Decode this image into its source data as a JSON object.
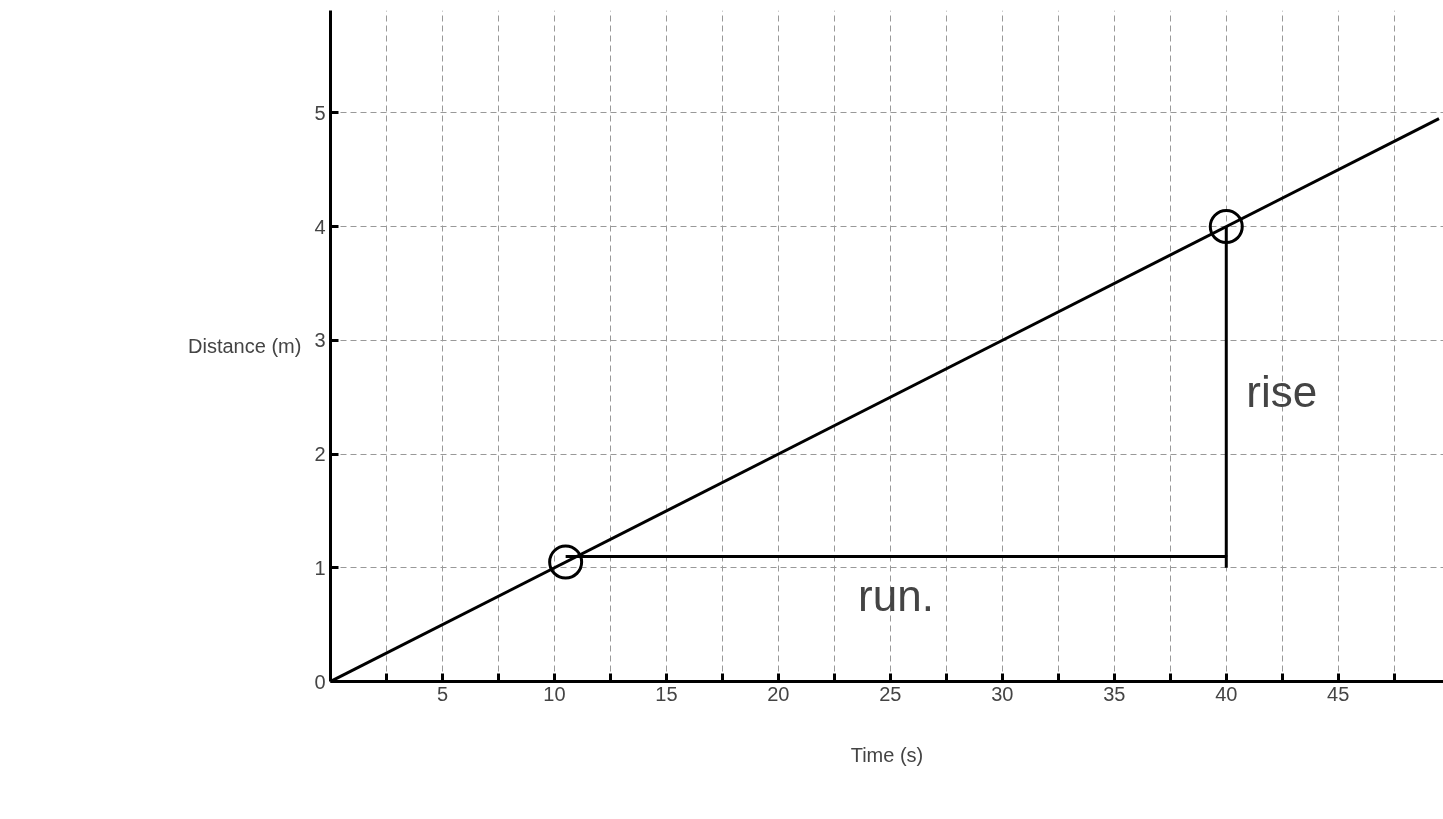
{
  "chart_data": {
    "type": "line",
    "xlabel": "Time (s)",
    "ylabel": "Distance (m)",
    "xlim": [
      0,
      49.7
    ],
    "ylim": [
      0,
      5.9
    ],
    "xticks": [
      {
        "value": 2.5,
        "label": null
      },
      5,
      {
        "value": 7.5,
        "label": null
      },
      10,
      {
        "value": 12.5,
        "label": null
      },
      15,
      {
        "value": 17.5,
        "label": null
      },
      20,
      {
        "value": 22.5,
        "label": null
      },
      25,
      {
        "value": 27.5,
        "label": null
      },
      30,
      {
        "value": 32.5,
        "label": null
      },
      35,
      {
        "value": 37.5,
        "label": null
      },
      40,
      {
        "value": 42.5,
        "label": null
      },
      45,
      {
        "value": 47.5,
        "label": null
      }
    ],
    "yticks": [
      0,
      1,
      2,
      3,
      4,
      5
    ],
    "grid": true,
    "line_style": "solid",
    "marker": "none",
    "series": [
      {
        "color": "#000000",
        "x": [
          0,
          49.5
        ],
        "values": [
          0,
          4.95
        ]
      },
      {
        "color": "#000000",
        "x": [
          10.5,
          40,
          40
        ],
        "values": [
          1.1,
          1.1,
          1.0
        ]
      },
      {
        "color": "#000000",
        "x": [
          40,
          40
        ],
        "values": [
          1.1,
          4.0
        ]
      },
      {
        "type": "scatter",
        "marker": "circle",
        "color": "#000000",
        "x": [
          10.5,
          40
        ],
        "values": [
          1.05,
          4.0
        ]
      }
    ],
    "annotations": [
      "run.",
      "rise"
    ]
  }
}
